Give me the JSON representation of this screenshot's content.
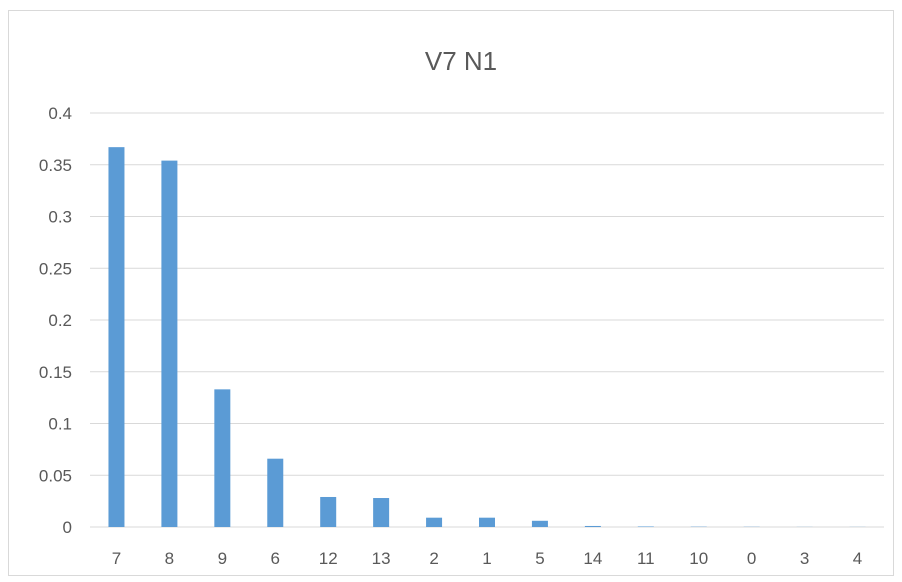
{
  "chart_data": {
    "type": "bar",
    "title": "V7 N1",
    "categories": [
      "7",
      "8",
      "9",
      "6",
      "12",
      "13",
      "2",
      "1",
      "5",
      "14",
      "11",
      "10",
      "0",
      "3",
      "4"
    ],
    "values": [
      0.367,
      0.354,
      0.133,
      0.066,
      0.029,
      0.028,
      0.009,
      0.009,
      0.006,
      0.001,
      0.0005,
      0.0003,
      0.0002,
      0.0001,
      0.0001
    ],
    "ylim": [
      0,
      0.4
    ],
    "yticks": [
      "0",
      "0.05",
      "0.1",
      "0.15",
      "0.2",
      "0.25",
      "0.3",
      "0.35",
      "0.4"
    ],
    "xlabel": "",
    "ylabel": "",
    "grid": true,
    "legend": "none",
    "bar_color": "#5B9BD5",
    "grid_color": "#d9d9d9",
    "text_color": "#595959"
  }
}
